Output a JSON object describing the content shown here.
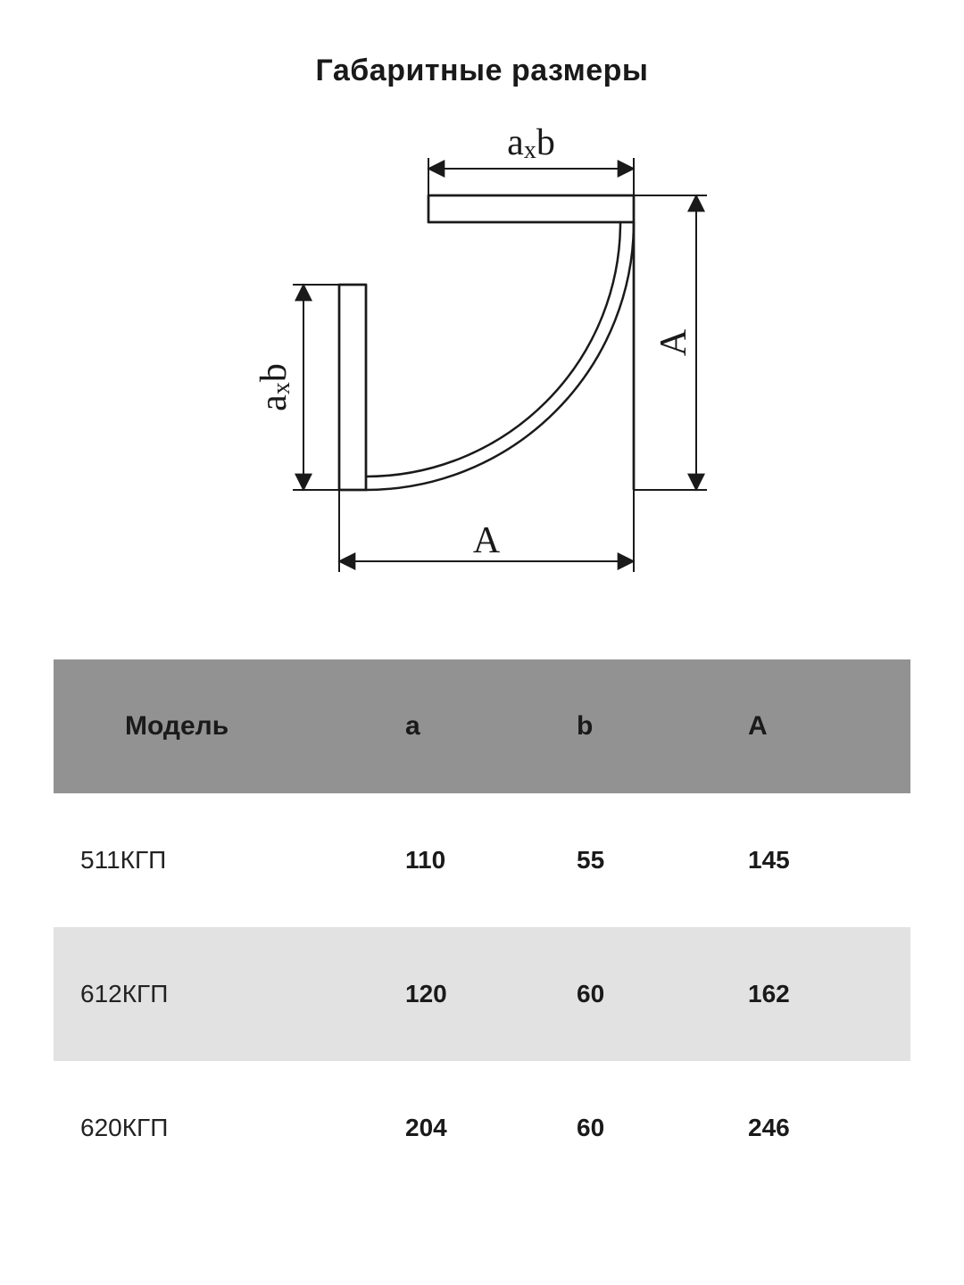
{
  "title": "Габаритные размеры",
  "diagram": {
    "stroke": "#1a1a1a",
    "stroke_width": 2,
    "label_top": "a×b",
    "label_left": "a×b",
    "label_bottom": "A",
    "label_right": "A",
    "label_font_size": 42,
    "label_font_family": "serif"
  },
  "table": {
    "header_bg": "#929292",
    "row_bg_even": "#e2e2e2",
    "row_bg_odd": "#ffffff",
    "columns": [
      "Модель",
      "a",
      "b",
      "A"
    ],
    "rows": [
      {
        "model": "511КГП",
        "a": "110",
        "b": "55",
        "A": "145"
      },
      {
        "model": "612КГП",
        "a": "120",
        "b": "60",
        "A": "162"
      },
      {
        "model": "620КГП",
        "a": "204",
        "b": "60",
        "A": "246"
      }
    ]
  }
}
